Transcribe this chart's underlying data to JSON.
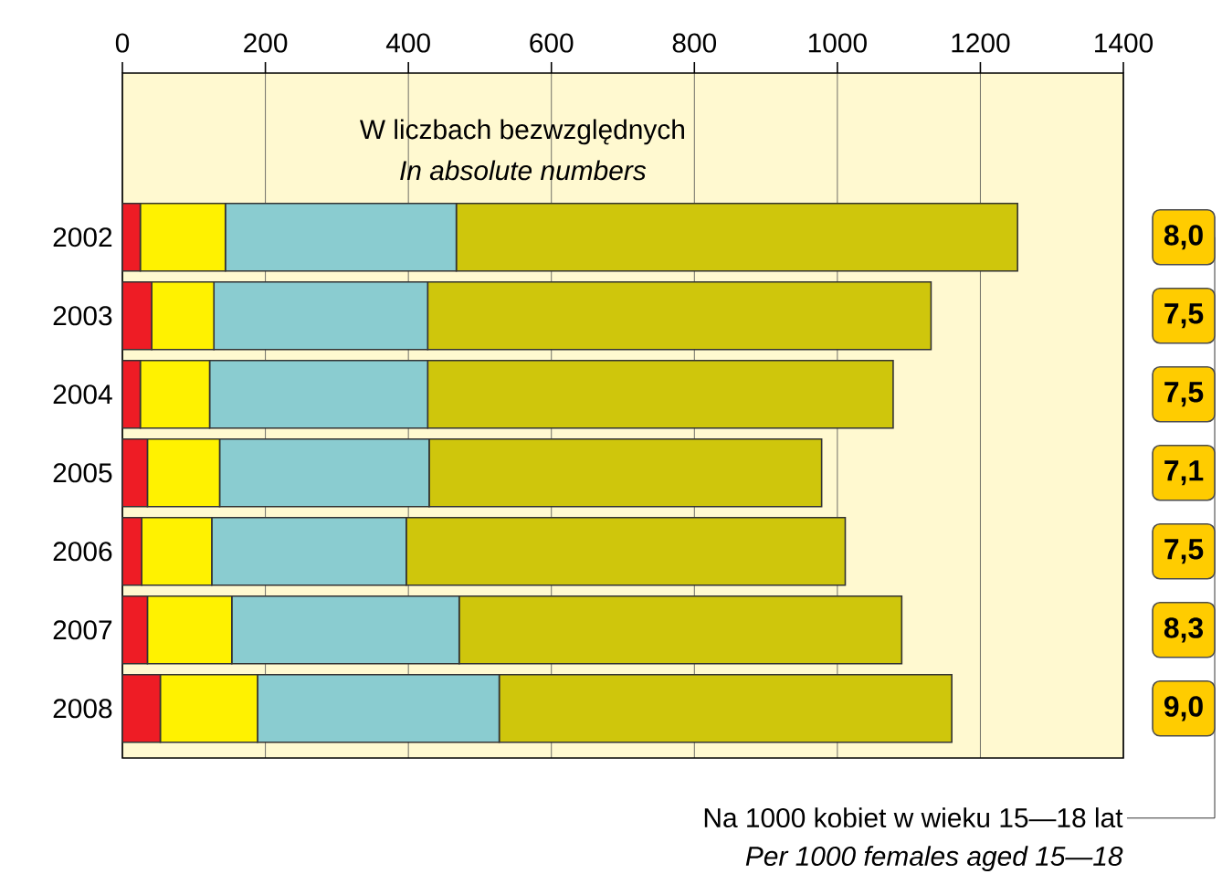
{
  "chart_data": {
    "type": "bar",
    "orientation": "horizontal",
    "stacked": true,
    "title": "W liczbach bezwzględnych",
    "subtitle": "In absolute numbers",
    "categories": [
      "2002",
      "2003",
      "2004",
      "2005",
      "2006",
      "2007",
      "2008"
    ],
    "series": [
      {
        "color": "#ee1c25",
        "values": [
          25,
          41,
          25,
          35,
          27,
          35,
          53
        ]
      },
      {
        "color": "#fff200",
        "values": [
          119,
          87,
          97,
          101,
          98,
          118,
          136
        ]
      },
      {
        "color": "#8accd0",
        "values": [
          323,
          299,
          305,
          293,
          272,
          318,
          338
        ]
      },
      {
        "color": "#cfc60c",
        "values": [
          785,
          704,
          651,
          549,
          614,
          619,
          633
        ]
      }
    ],
    "xlim": [
      0,
      1400
    ],
    "xticks": [
      0,
      200,
      400,
      600,
      800,
      1000,
      1200,
      1400
    ],
    "grid": "x",
    "annotations": [
      "8,0",
      "7,5",
      "7,5",
      "7,1",
      "7,5",
      "8,3",
      "9,0",
      "Na 1000 kobiet w wieku 15—18 lat",
      "Per 1000 females aged 15—18"
    ]
  }
}
